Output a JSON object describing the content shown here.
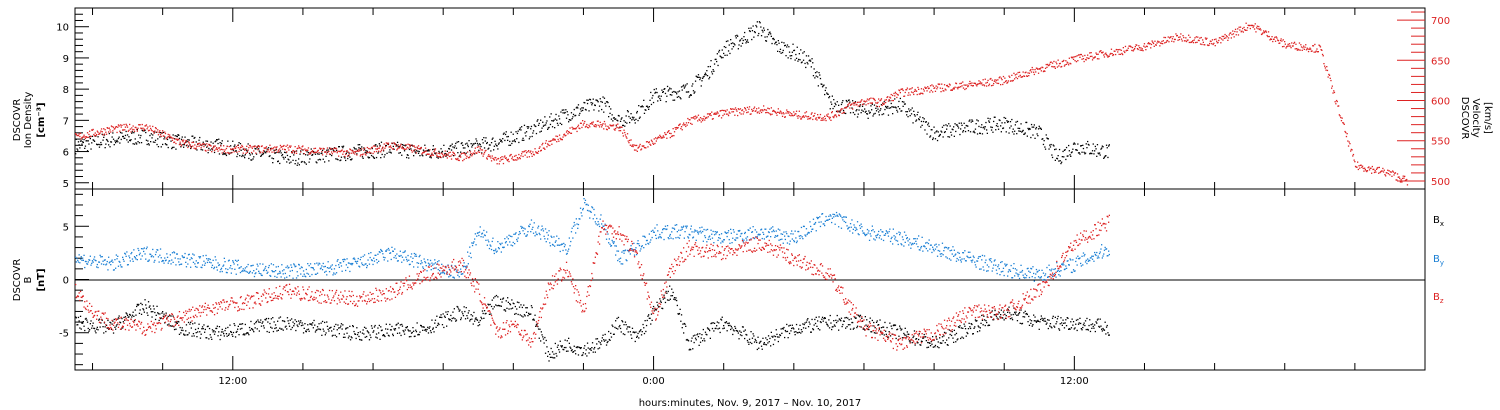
{
  "figure": {
    "xlabel": "hours:minutes, Nov.  9, 2017 – Nov. 10, 2017",
    "x_tick_labels": [
      "12:00",
      "0:00",
      "12:00"
    ]
  },
  "panel_density": {
    "ylabel": [
      "DSCOVR",
      "Ion Density",
      "[cm⁻³]"
    ],
    "y_tick_labels": [
      "5",
      "6",
      "7",
      "8",
      "9",
      "10"
    ],
    "y2label": [
      "DSCOVR",
      "Velocity",
      "[km/s]"
    ],
    "y2_tick_labels": [
      "500",
      "550",
      "600",
      "650",
      "700"
    ]
  },
  "panel_field": {
    "ylabel": [
      "DSCOVR",
      "B",
      "[nT]"
    ],
    "y_tick_labels": [
      "-5",
      "0",
      "5"
    ],
    "legend": [
      "Bx",
      "By",
      "Bz"
    ]
  },
  "colors": {
    "density": "#000000",
    "velocity": "#dd2222",
    "bx": "#000000",
    "by": "#1a7fd4",
    "bz": "#dd2222",
    "axes": "#000000"
  },
  "chart_data": [
    {
      "type": "scatter",
      "panel": "top",
      "x_unit": "hours since 2017-11-09 00:00 UT",
      "xlim": [
        7.5,
        46.0
      ],
      "ylim": [
        4.8,
        10.6
      ],
      "y2lim": [
        490,
        715
      ],
      "series": [
        {
          "name": "Ion Density",
          "axis": "left",
          "x": [
            7.5,
            8.5,
            9.5,
            10.5,
            11.5,
            12.5,
            13.5,
            14.5,
            15.5,
            16.5,
            17.5,
            18.5,
            19.5,
            20.5,
            21.5,
            22.5,
            23.0,
            23.5,
            24.0,
            24.5,
            25.0,
            25.5,
            26.0,
            26.5,
            27.0,
            27.5,
            28.0,
            28.5,
            29.0,
            30.0,
            31.0,
            32.0,
            33.0,
            34.0,
            35.0,
            35.5,
            36.0,
            37.0
          ],
          "y": [
            6.2,
            6.4,
            6.5,
            6.3,
            6.2,
            6.0,
            5.8,
            5.9,
            6.0,
            6.1,
            6.0,
            6.1,
            6.3,
            6.7,
            7.2,
            7.6,
            7.0,
            7.2,
            7.8,
            7.9,
            8.0,
            8.5,
            9.3,
            9.6,
            10.0,
            9.4,
            9.2,
            8.8,
            7.6,
            7.3,
            7.5,
            6.6,
            6.8,
            6.9,
            6.6,
            5.8,
            6.2,
            6.0
          ]
        },
        {
          "name": "Velocity",
          "axis": "right",
          "x": [
            7.5,
            8.5,
            9.5,
            10.5,
            11.5,
            12.5,
            13.5,
            14.5,
            15.5,
            16.5,
            17.5,
            18.5,
            19.0,
            19.5,
            20.5,
            21.0,
            21.5,
            22.0,
            23.0,
            23.5,
            24.0,
            24.5,
            25.0,
            26.0,
            27.0,
            28.0,
            29.0,
            29.5,
            30.0,
            30.5,
            31.0,
            32.0,
            33.0,
            34.0,
            35.0,
            36.0,
            37.0,
            38.0,
            39.0,
            40.0,
            41.0,
            42.0,
            43.0,
            44.0,
            45.0,
            45.5
          ],
          "y": [
            555,
            565,
            568,
            548,
            540,
            540,
            541,
            538,
            535,
            545,
            538,
            530,
            540,
            525,
            535,
            548,
            560,
            572,
            568,
            540,
            550,
            560,
            575,
            585,
            590,
            583,
            580,
            592,
            600,
            598,
            610,
            616,
            620,
            626,
            640,
            652,
            660,
            668,
            680,
            672,
            695,
            670,
            665,
            520,
            510,
            500
          ]
        }
      ]
    },
    {
      "type": "scatter",
      "panel": "bottom",
      "x_unit": "hours since 2017-11-09 00:00 UT",
      "xlim": [
        7.5,
        46.0
      ],
      "ylim": [
        -8.5,
        8.5
      ],
      "series": [
        {
          "name": "Bx",
          "x": [
            7.5,
            8.5,
            9.5,
            10.5,
            11.5,
            12.5,
            13.5,
            14.5,
            15.5,
            16.5,
            17.5,
            18.5,
            19.0,
            19.5,
            20.5,
            21.0,
            21.5,
            22.0,
            22.5,
            23.0,
            23.5,
            24.0,
            24.5,
            25.0,
            25.5,
            26.0,
            27.0,
            28.0,
            29.0,
            30.0,
            31.0,
            32.0,
            33.0,
            34.0,
            35.0,
            36.0,
            37.0
          ],
          "y": [
            -4.0,
            -4.5,
            -2.5,
            -4.5,
            -5.0,
            -4.5,
            -4.0,
            -4.5,
            -5.0,
            -4.8,
            -4.5,
            -3.0,
            -4.0,
            -2.0,
            -3.0,
            -7.0,
            -6.0,
            -6.5,
            -6.0,
            -4.0,
            -5.5,
            -3.0,
            -1.0,
            -6.0,
            -5.0,
            -4.0,
            -6.0,
            -4.5,
            -4.0,
            -4.0,
            -5.0,
            -6.0,
            -4.5,
            -3.0,
            -4.0,
            -4.0,
            -4.5
          ]
        },
        {
          "name": "By",
          "x": [
            7.5,
            8.5,
            9.5,
            10.5,
            11.5,
            12.5,
            13.5,
            14.5,
            15.5,
            16.5,
            17.5,
            18.5,
            19.0,
            19.5,
            20.5,
            21.0,
            21.5,
            22.0,
            22.5,
            23.0,
            23.5,
            24.0,
            25.0,
            26.0,
            27.0,
            28.0,
            29.0,
            30.0,
            31.0,
            32.0,
            33.0,
            34.0,
            35.0,
            36.0,
            37.0
          ],
          "y": [
            2.0,
            1.5,
            2.5,
            2.0,
            1.5,
            1.0,
            0.8,
            1.0,
            1.5,
            2.5,
            1.5,
            0.5,
            4.5,
            3.0,
            5.0,
            4.0,
            3.0,
            7.0,
            5.5,
            2.0,
            3.0,
            4.5,
            4.5,
            4.0,
            4.5,
            4.0,
            6.0,
            4.5,
            4.0,
            3.0,
            2.0,
            1.0,
            0.5,
            1.5,
            3.0
          ]
        },
        {
          "name": "Bz",
          "x": [
            7.5,
            8.0,
            8.5,
            9.5,
            10.5,
            11.5,
            12.5,
            13.5,
            14.5,
            15.5,
            16.5,
            17.5,
            18.0,
            18.5,
            19.0,
            19.5,
            20.0,
            20.5,
            21.0,
            21.5,
            22.0,
            22.5,
            23.0,
            23.5,
            24.0,
            24.5,
            25.0,
            26.0,
            27.0,
            28.0,
            29.0,
            30.0,
            31.0,
            32.0,
            33.0,
            34.0,
            35.0,
            36.0,
            37.0
          ],
          "y": [
            -1.0,
            -3.0,
            -4.0,
            -4.5,
            -3.5,
            -2.5,
            -2.0,
            -1.0,
            -1.5,
            -1.8,
            -1.2,
            0.5,
            1.0,
            1.5,
            -1.0,
            -5.0,
            -4.0,
            -6.0,
            -0.5,
            1.0,
            -3.0,
            5.0,
            4.5,
            2.5,
            -3.5,
            1.0,
            3.0,
            2.5,
            3.5,
            2.0,
            0.5,
            -4.5,
            -6.0,
            -5.0,
            -3.0,
            -3.0,
            -1.0,
            3.5,
            5.5
          ]
        }
      ]
    }
  ]
}
